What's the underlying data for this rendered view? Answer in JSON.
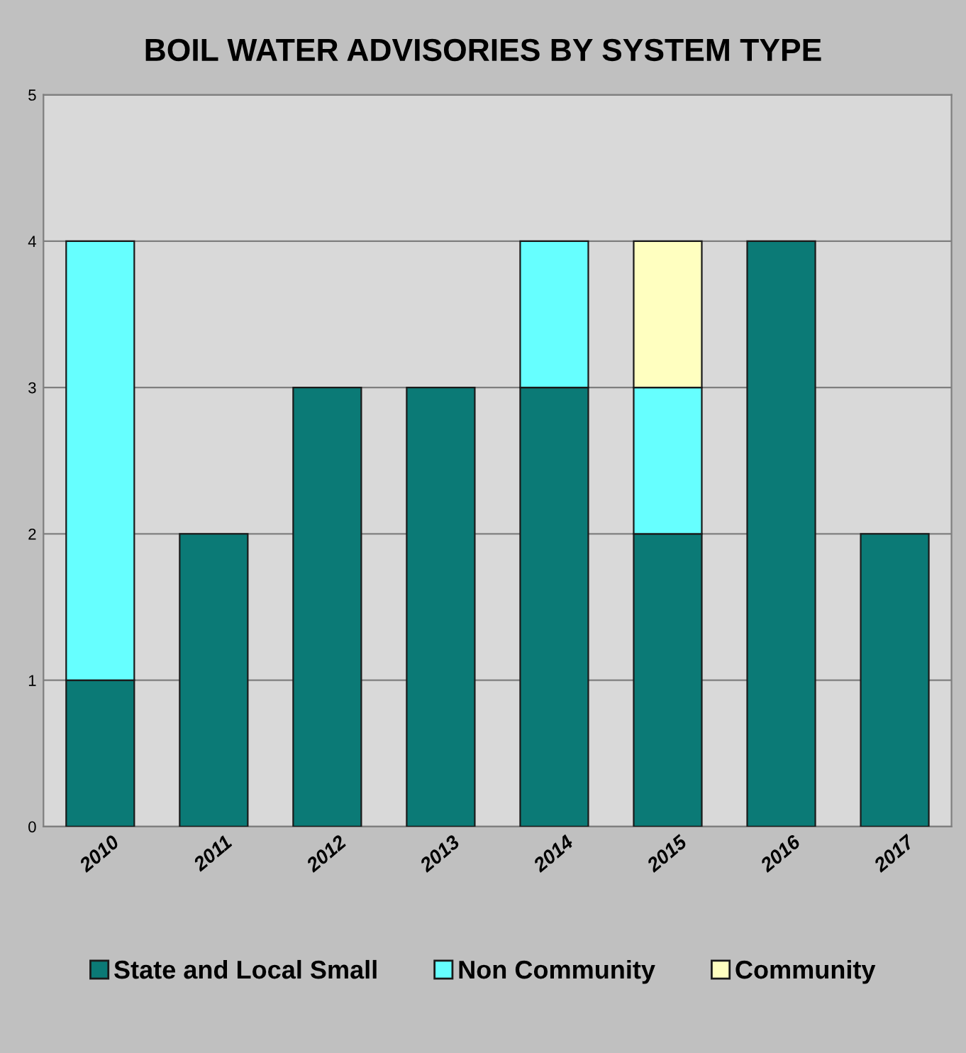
{
  "chart_data": {
    "type": "bar",
    "title": "BOIL WATER ADVISORIES BY SYSTEM TYPE",
    "categories": [
      "2010",
      "2011",
      "2012",
      "2013",
      "2014",
      "2015",
      "2016",
      "2017"
    ],
    "stacked": true,
    "series": [
      {
        "name": "State and Local Small",
        "color": "#0b7a76",
        "values": [
          1,
          2,
          3,
          3,
          3,
          2,
          4,
          2
        ]
      },
      {
        "name": "Non Community",
        "color": "#66ffff",
        "values": [
          3,
          null,
          null,
          null,
          1,
          1,
          null,
          null
        ]
      },
      {
        "name": "Community",
        "color": "#ffffc0",
        "values": [
          null,
          null,
          null,
          null,
          null,
          1,
          null,
          null
        ]
      }
    ],
    "ylim": [
      0,
      5
    ],
    "yticks": [
      0,
      1,
      2,
      3,
      4,
      5
    ],
    "grid": "y",
    "legend": "bottom"
  }
}
